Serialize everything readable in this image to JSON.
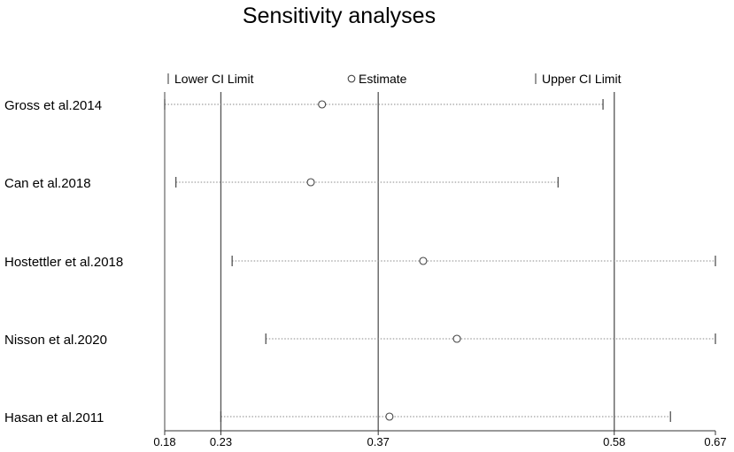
{
  "chart_data": {
    "type": "forest",
    "title": "Sensitivity analyses",
    "legend": {
      "lower": "Lower CI Limit",
      "estimate": "Estimate",
      "upper": "Upper CI Limit",
      "placement": "top"
    },
    "xlim": [
      0.18,
      0.67
    ],
    "x_ticks": [
      0.18,
      0.23,
      0.37,
      0.58,
      0.67
    ],
    "x_tick_labels": [
      "0.18",
      "0.23",
      "0.37",
      "0.58",
      "0.67"
    ],
    "reference_lines": [
      0.23,
      0.37,
      0.58
    ],
    "studies": [
      {
        "label": "Gross et al.2014",
        "lower": 0.18,
        "estimate": 0.32,
        "upper": 0.57
      },
      {
        "label": "Can et al.2018",
        "lower": 0.19,
        "estimate": 0.31,
        "upper": 0.53
      },
      {
        "label": "Hostettler et al.2018",
        "lower": 0.24,
        "estimate": 0.41,
        "upper": 0.67
      },
      {
        "label": "Nisson et al.2020",
        "lower": 0.27,
        "estimate": 0.44,
        "upper": 0.67
      },
      {
        "label": "Hasan et al.2011",
        "lower": 0.23,
        "estimate": 0.38,
        "upper": 0.63
      }
    ],
    "colors": {
      "lines": "#555555",
      "ci_lines": "#888888",
      "text": "#000000"
    }
  }
}
